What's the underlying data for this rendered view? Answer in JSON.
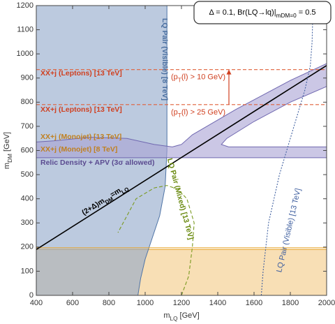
{
  "chart_data": {
    "type": "region",
    "title": [
      {
        "text": "Δ = 0.1, Br(LQ→lq)|"
      },
      {
        "text": "mDM=0",
        "sub": true
      },
      {
        "text": " = 0.5"
      }
    ],
    "x_label": [
      {
        "text": "m"
      },
      {
        "text": "LQ",
        "sub": true
      },
      {
        "text": " [GeV]"
      }
    ],
    "y_label": [
      {
        "text": "m"
      },
      {
        "text": "DM",
        "sub": true
      },
      {
        "text": " [GeV]"
      }
    ],
    "xlim": [
      400,
      2000
    ],
    "ylim": [
      0,
      1200
    ],
    "xticks": [
      400,
      600,
      800,
      1000,
      1200,
      1400,
      1600,
      1800,
      2000
    ],
    "yticks": [
      0,
      100,
      200,
      300,
      400,
      500,
      600,
      700,
      800,
      900,
      1000,
      1100,
      1200
    ],
    "series": [
      {
        "name": "XX+j (Monojet) [8 TeV]",
        "kind": "region",
        "color": "#f3c983",
        "stroke": "#e8a020",
        "x": [
          400,
          2000,
          2000,
          400
        ],
        "y": [
          0,
          0,
          190,
          190
        ]
      },
      {
        "name": "LQ Pair (Visible) [8 TeV]",
        "kind": "region",
        "color": "#8fa6c9",
        "stroke": "#4f74a6",
        "x": [
          400,
          1120,
          1120,
          1110,
          1080,
          1040,
          1000,
          975,
          960,
          400
        ],
        "y": [
          1200,
          1200,
          600,
          450,
          330,
          240,
          150,
          70,
          0,
          0
        ]
      },
      {
        "name": "Relic Density + APV (3σ allowed)",
        "kind": "region",
        "color": "#a9a2d4",
        "stroke": "#7068b0",
        "x": [
          400,
          500,
          700,
          900,
          1050,
          1150,
          1200,
          1260,
          1500,
          1800,
          2000,
          2000,
          1800,
          1600,
          1450,
          1420,
          1460,
          2000,
          2000,
          400
        ],
        "y": [
          635,
          640,
          655,
          650,
          625,
          615,
          625,
          665,
          770,
          890,
          960,
          865,
          800,
          720,
          650,
          625,
          615,
          615,
          570,
          570
        ]
      },
      {
        "name": "XX+j (Monojet) [13 TeV]",
        "kind": "line",
        "dash": "solid",
        "color": "#e8a020",
        "x": [
          400,
          2000
        ],
        "y": [
          197,
          197
        ]
      },
      {
        "name": "XX+j (Leptons) [13 TeV]",
        "kind": "line",
        "dash": "dashed",
        "color": "#e0603a",
        "x": [
          400,
          2000
        ],
        "y": [
          790,
          790
        ]
      },
      {
        "name": "XX+j (Leptons) [13 TeV]",
        "kind": "line",
        "dash": "dashed",
        "color": "#e0603a",
        "x": [
          400,
          2000
        ],
        "y": [
          935,
          935
        ]
      },
      {
        "name": [
          {
            "text": "(2+Δ)m"
          },
          {
            "text": "DM",
            "sub": true
          },
          {
            "text": "=m"
          },
          {
            "text": "LQ",
            "sub": true
          }
        ],
        "kind": "line",
        "dash": "solid",
        "color": "#000000",
        "x": [
          400,
          2000
        ],
        "y": [
          190,
          952
        ]
      },
      {
        "name": "LQ Pair (Mixed) [13 TeV]",
        "kind": "line",
        "dash": "dashed",
        "color": "#7a9a20",
        "x": [
          1200,
          1240,
          1260,
          1270,
          1230,
          1180,
          1120,
          1050,
          950,
          850
        ],
        "y": [
          0,
          80,
          200,
          300,
          400,
          440,
          455,
          445,
          400,
          260
        ]
      },
      {
        "name": "LQ Pair (Visible) [13 TeV]",
        "kind": "line",
        "dash": "dotted",
        "color": "#4060a0",
        "x": [
          1640,
          1650,
          1680,
          1740,
          1820,
          1880,
          1910,
          1920,
          1925
        ],
        "y": [
          0,
          100,
          300,
          500,
          700,
          850,
          950,
          1050,
          1200
        ]
      }
    ],
    "annotations": [
      [
        {
          "text": "(p"
        },
        {
          "text": "T",
          "sub": true
        },
        {
          "text": "(l) > 25 GeV)"
        }
      ],
      [
        {
          "text": "(p"
        },
        {
          "text": "T",
          "sub": true
        },
        {
          "text": "(l) > 10 GeV)"
        }
      ]
    ]
  }
}
